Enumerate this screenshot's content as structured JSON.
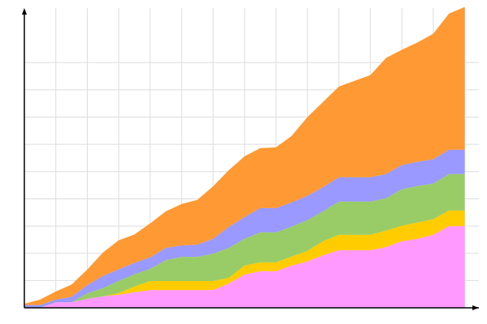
{
  "chart_data": {
    "type": "area",
    "stacked": true,
    "title": "",
    "xlabel": "",
    "ylabel": "",
    "x": [
      0,
      1,
      2,
      3,
      4,
      5,
      6,
      7,
      8,
      9,
      10,
      11,
      12,
      13,
      14,
      15,
      16,
      17,
      18,
      19,
      20,
      21,
      22,
      23,
      24,
      25,
      26,
      27,
      28
    ],
    "xlim": [
      0,
      28.9
    ],
    "ylim": [
      0,
      11
    ],
    "grid": true,
    "x_grid_step": 2,
    "y_grid_lines": [
      1,
      2,
      3,
      4,
      5,
      6,
      7,
      8,
      9
    ],
    "legend": "none",
    "series": [
      {
        "color": "#ff99ff",
        "values": [
          0,
          0,
          0.2,
          0.2,
          0.33,
          0.42,
          0.48,
          0.57,
          0.65,
          0.65,
          0.65,
          0.65,
          0.65,
          0.89,
          1.22,
          1.34,
          1.34,
          1.55,
          1.7,
          1.93,
          2.11,
          2.11,
          2.11,
          2.23,
          2.44,
          2.53,
          2.68,
          3.0,
          3.0
        ]
      },
      {
        "color": "#ffcc00",
        "values": [
          0,
          0,
          0,
          0,
          0,
          0,
          0.06,
          0.21,
          0.33,
          0.33,
          0.33,
          0.33,
          0.33,
          0.21,
          0.33,
          0.33,
          0.33,
          0.33,
          0.39,
          0.51,
          0.57,
          0.57,
          0.57,
          0.6,
          0.57,
          0.6,
          0.57,
          0.57,
          0.57
        ]
      },
      {
        "color": "#99cc66",
        "values": [
          0,
          0,
          0,
          0,
          0.2,
          0.3,
          0.45,
          0.45,
          0.45,
          0.77,
          0.89,
          0.89,
          1.01,
          1.1,
          0.98,
          1.1,
          1.1,
          1.1,
          1.13,
          1.1,
          1.22,
          1.22,
          1.22,
          1.19,
          1.34,
          1.34,
          1.31,
          1.34,
          1.34
        ]
      },
      {
        "color": "#9999ff",
        "values": [
          0.1,
          0.1,
          0.1,
          0.2,
          0.3,
          0.45,
          0.42,
          0.42,
          0.42,
          0.45,
          0.42,
          0.45,
          0.54,
          0.77,
          0.8,
          0.89,
          0.89,
          0.89,
          0.89,
          0.89,
          0.89,
          0.89,
          0.89,
          0.89,
          0.89,
          0.89,
          0.89,
          0.89,
          0.89
        ]
      },
      {
        "color": "#ff9933",
        "values": [
          0.05,
          0.2,
          0.3,
          0.45,
          0.57,
          0.86,
          1.07,
          1.04,
          1.25,
          1.34,
          1.52,
          1.64,
          1.93,
          2.08,
          2.23,
          2.2,
          2.23,
          2.44,
          2.89,
          3.13,
          3.33,
          3.54,
          3.75,
          4.26,
          4.23,
          4.38,
          4.61,
          5.0,
          5.24
        ]
      }
    ]
  }
}
